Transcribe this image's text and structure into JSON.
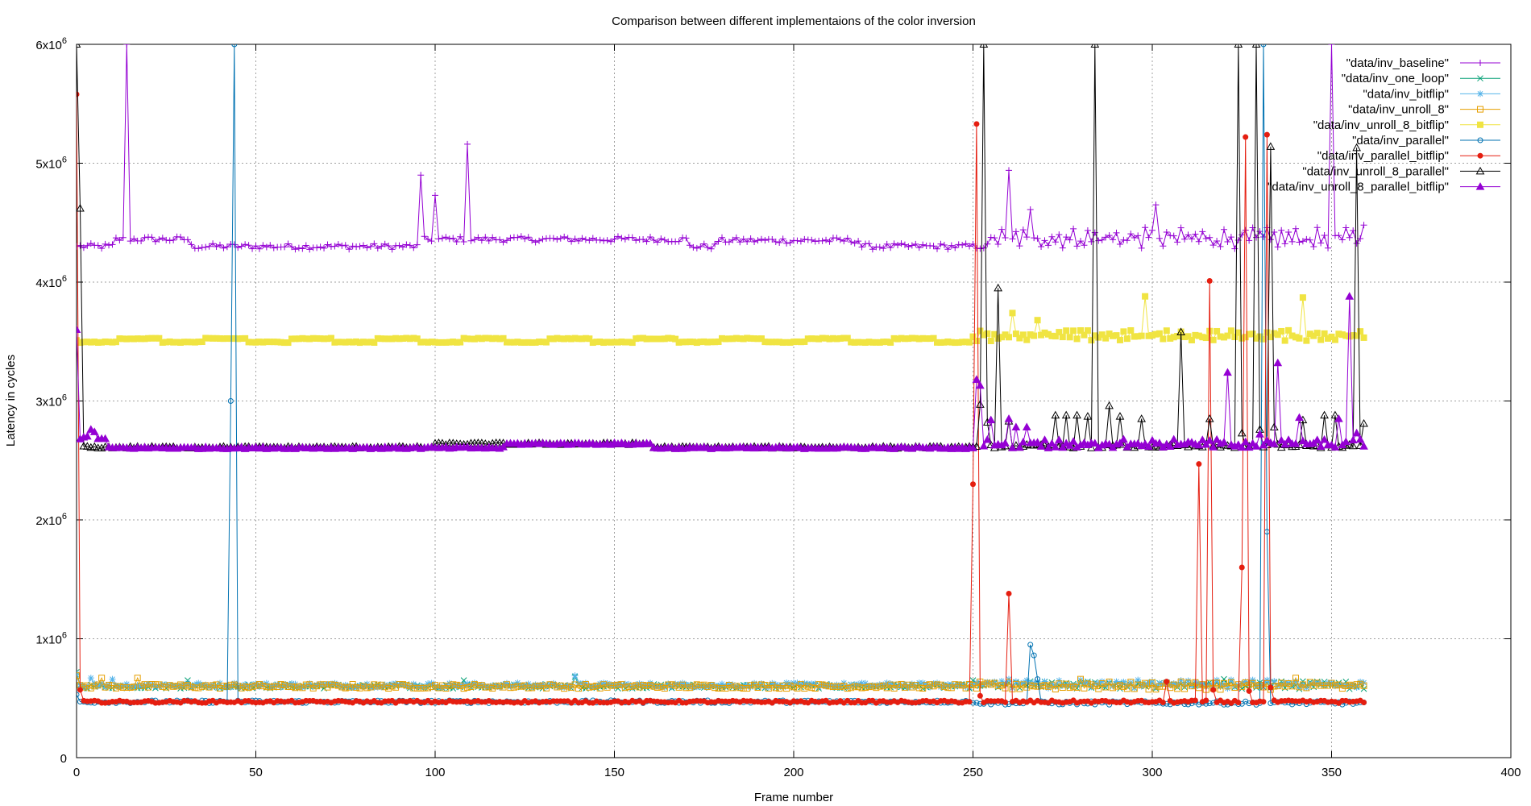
{
  "chart_data": {
    "type": "line",
    "title": "Comparison between different implementaions of the color inversion",
    "xlabel": "Frame number",
    "ylabel": "Latency in cycles",
    "xlim": [
      0,
      400
    ],
    "ylim": [
      0,
      6000000
    ],
    "x_ticks": [
      0,
      50,
      100,
      150,
      200,
      250,
      300,
      350,
      400
    ],
    "x_tick_labels": [
      "0",
      "50",
      "100",
      "150",
      "200",
      "250",
      "300",
      "350",
      "400"
    ],
    "y_ticks": [
      0,
      1000000,
      2000000,
      3000000,
      4000000,
      5000000,
      6000000
    ],
    "y_tick_labels": [
      {
        "base": "0",
        "exp": ""
      },
      {
        "base": "1x10",
        "exp": "6"
      },
      {
        "base": "2x10",
        "exp": "6"
      },
      {
        "base": "3x10",
        "exp": "6"
      },
      {
        "base": "4x10",
        "exp": "6"
      },
      {
        "base": "5x10",
        "exp": "6"
      },
      {
        "base": "6x10",
        "exp": "6"
      }
    ],
    "grid": true,
    "legend_position": "top-right",
    "series": [
      {
        "name": "\"data/inv_baseline\"",
        "color": "#9400d3",
        "marker": "plus",
        "base": 4300000,
        "noise": 25000,
        "step_period": 0,
        "step_amp": 0,
        "first": 4300000,
        "segments": [
          [
            0,
            10,
            4300000
          ],
          [
            11,
            31,
            4360000
          ],
          [
            32,
            96,
            4300000
          ],
          [
            97,
            170,
            4360000
          ],
          [
            171,
            178,
            4300000
          ],
          [
            179,
            218,
            4350000
          ],
          [
            219,
            254,
            4300000
          ]
        ],
        "late_from": 255,
        "late_base": 4370000,
        "late_noise": 60000,
        "spikes": [
          [
            0,
            6000000
          ],
          [
            14,
            6000000
          ],
          [
            96,
            4900000
          ],
          [
            100,
            4730000
          ],
          [
            109,
            5160000
          ],
          [
            260,
            4940000
          ],
          [
            266,
            4610000
          ],
          [
            301,
            4650000
          ],
          [
            350,
            6000000
          ],
          [
            359,
            4480000
          ]
        ]
      },
      {
        "name": "\"data/inv_one_loop\"",
        "color": "#009e73",
        "marker": "x",
        "base": 600000,
        "noise": 18000,
        "step_period": 0,
        "step_amp": 0,
        "first": 720000,
        "segments": [],
        "late_from": 250,
        "late_base": 610000,
        "late_noise": 22000,
        "spikes": [
          [
            31,
            650000
          ],
          [
            108,
            650000
          ],
          [
            139,
            680000
          ],
          [
            250,
            650000
          ],
          [
            320,
            660000
          ]
        ]
      },
      {
        "name": "\"data/inv_bitflip\"",
        "color": "#56b4e9",
        "marker": "star",
        "base": 610000,
        "noise": 20000,
        "step_period": 0,
        "step_amp": 0,
        "first": 700000,
        "segments": [],
        "late_from": 250,
        "late_base": 620000,
        "late_noise": 25000,
        "spikes": [
          [
            4,
            670000
          ],
          [
            10,
            660000
          ],
          [
            139,
            690000
          ],
          [
            260,
            660000
          ],
          [
            265,
            650000
          ]
        ]
      },
      {
        "name": "\"data/inv_unroll_8\"",
        "color": "#e69f00",
        "marker": "square",
        "base": 600000,
        "noise": 18000,
        "step_period": 0,
        "step_amp": 0,
        "first": 690000,
        "segments": [],
        "late_from": 250,
        "late_base": 605000,
        "late_noise": 22000,
        "spikes": [
          [
            7,
            670000
          ],
          [
            17,
            670000
          ],
          [
            280,
            660000
          ],
          [
            340,
            670000
          ]
        ]
      },
      {
        "name": "\"data/inv_unroll_8_bitflip\"",
        "color": "#f0e442",
        "marker": "filled-square",
        "base": 3510000,
        "noise": 4000,
        "step_period": 12,
        "step_amp": 30000,
        "first": 3510000,
        "segments": [],
        "late_from": 250,
        "late_base": 3550000,
        "late_noise": 30000,
        "spikes": [
          [
            261,
            3740000
          ],
          [
            268,
            3680000
          ],
          [
            298,
            3880000
          ],
          [
            342,
            3870000
          ]
        ]
      },
      {
        "name": "\"data/inv_parallel\"",
        "color": "#0072b2",
        "marker": "circle",
        "base": 470000,
        "noise": 12000,
        "step_period": 0,
        "step_amp": 0,
        "first": 530000,
        "segments": [],
        "late_from": 252,
        "late_base": 460000,
        "late_noise": 15000,
        "spikes": [
          [
            43,
            3000000
          ],
          [
            44,
            6000000
          ],
          [
            45,
            480000
          ],
          [
            266,
            950000
          ],
          [
            267,
            860000
          ],
          [
            268,
            660000
          ],
          [
            331,
            6000000
          ],
          [
            332,
            1900000
          ]
        ]
      },
      {
        "name": "\"data/inv_parallel_bitflip\"",
        "color": "#e51e10",
        "marker": "filled-circle",
        "base": 470000,
        "noise": 10000,
        "step_period": 0,
        "step_amp": 0,
        "first": 5580000,
        "segments": [],
        "late_from": 252,
        "late_base": 470000,
        "late_noise": 12000,
        "spikes": [
          [
            1,
            570000
          ],
          [
            250,
            2300000
          ],
          [
            251,
            5330000
          ],
          [
            252,
            520000
          ],
          [
            260,
            1380000
          ],
          [
            304,
            640000
          ],
          [
            313,
            2470000
          ],
          [
            316,
            4010000
          ],
          [
            317,
            570000
          ],
          [
            325,
            1600000
          ],
          [
            326,
            5220000
          ],
          [
            327,
            560000
          ],
          [
            332,
            5240000
          ],
          [
            333,
            590000
          ]
        ]
      },
      {
        "name": "\"data/inv_unroll_8_parallel\"",
        "color": "#000000",
        "marker": "triangle",
        "base": 2610000,
        "noise": 8000,
        "step_period": 0,
        "step_amp": 0,
        "first": 6000000,
        "segments": [
          [
            100,
            160,
            2640000
          ]
        ],
        "late_from": 254,
        "late_base": 2620000,
        "late_noise": 15000,
        "spikes": [
          [
            1,
            4620000
          ],
          [
            2,
            2620000
          ],
          [
            252,
            2970000
          ],
          [
            253,
            6000000
          ],
          [
            254,
            2820000
          ],
          [
            257,
            3950000
          ],
          [
            260,
            2830000
          ],
          [
            273,
            2880000
          ],
          [
            276,
            2880000
          ],
          [
            279,
            2880000
          ],
          [
            282,
            2870000
          ],
          [
            284,
            6000000
          ],
          [
            285,
            2610000
          ],
          [
            288,
            2960000
          ],
          [
            291,
            2870000
          ],
          [
            297,
            2850000
          ],
          [
            308,
            3580000
          ],
          [
            316,
            2850000
          ],
          [
            324,
            6000000
          ],
          [
            325,
            2730000
          ],
          [
            329,
            6000000
          ],
          [
            330,
            2760000
          ],
          [
            333,
            5140000
          ],
          [
            334,
            2780000
          ],
          [
            342,
            2840000
          ],
          [
            348,
            2880000
          ],
          [
            351,
            2880000
          ],
          [
            357,
            5130000
          ],
          [
            359,
            2810000
          ]
        ]
      },
      {
        "name": "\"data/inv_unroll_8_parallel_bitflip\"",
        "color": "#9400d3",
        "marker": "filled-triangle",
        "base": 2605000,
        "noise": 8000,
        "step_period": 0,
        "step_amp": 0,
        "first": 3600000,
        "segments": [
          [
            1,
            3,
            2700000
          ],
          [
            4,
            8,
            2680000
          ],
          [
            120,
            160,
            2640000
          ]
        ],
        "late_from": 251,
        "late_base": 2640000,
        "late_noise": 25000,
        "spikes": [
          [
            1,
            2680000
          ],
          [
            4,
            2760000
          ],
          [
            5,
            2740000
          ],
          [
            251,
            3180000
          ],
          [
            252,
            3130000
          ],
          [
            253,
            2620000
          ],
          [
            255,
            2840000
          ],
          [
            260,
            2850000
          ],
          [
            262,
            2780000
          ],
          [
            265,
            2780000
          ],
          [
            321,
            3240000
          ],
          [
            330,
            2720000
          ],
          [
            335,
            3320000
          ],
          [
            341,
            2860000
          ],
          [
            352,
            2850000
          ],
          [
            355,
            3880000
          ],
          [
            357,
            2730000
          ]
        ]
      }
    ]
  }
}
